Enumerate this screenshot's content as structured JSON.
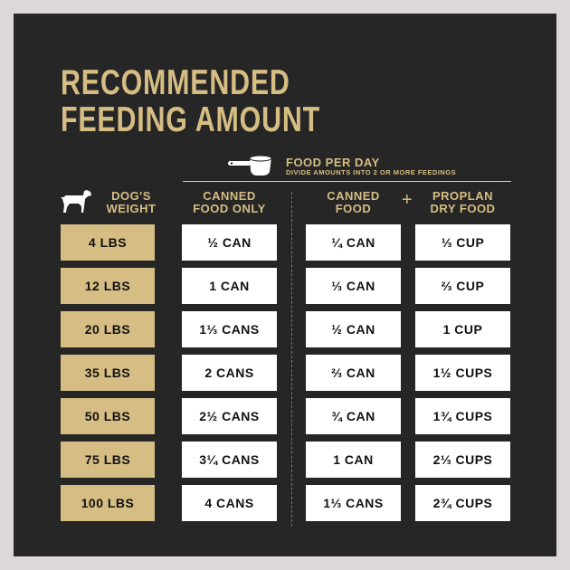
{
  "title": [
    "RECOMMENDED",
    "FEEDING AMOUNT"
  ],
  "food_per_day": {
    "heading": "FOOD PER DAY",
    "subheading": "DIVIDE AMOUNTS INTO 2 OR MORE FEEDINGS",
    "icon": "measuring-cup-icon"
  },
  "headers": {
    "weight": [
      "DOG'S",
      "WEIGHT"
    ],
    "canned_only": [
      "CANNED",
      "FOOD ONLY"
    ],
    "canned": [
      "CANNED",
      "FOOD"
    ],
    "plus": "+",
    "dry": [
      "PROPLAN",
      "DRY FOOD"
    ]
  },
  "colors": {
    "background": "#262626",
    "accent": "#d6bd83"
  },
  "rows": [
    {
      "weight": "4 LBS",
      "canned_only": "½ CAN",
      "canned": "¼ CAN",
      "dry": "⅓ CUP"
    },
    {
      "weight": "12 LBS",
      "canned_only": "1 CAN",
      "canned": "⅓ CAN",
      "dry": "⅔ CUP"
    },
    {
      "weight": "20 LBS",
      "canned_only": "1⅓ CANS",
      "canned": "½ CAN",
      "dry": "1 CUP"
    },
    {
      "weight": "35 LBS",
      "canned_only": "2 CANS",
      "canned": "⅔ CAN",
      "dry": "1½ CUPS"
    },
    {
      "weight": "50 LBS",
      "canned_only": "2½ CANS",
      "canned": "¾ CAN",
      "dry": "1¾ CUPS"
    },
    {
      "weight": "75 LBS",
      "canned_only": "3¼ CANS",
      "canned": "1 CAN",
      "dry": "2⅓ CUPS"
    },
    {
      "weight": "100 LBS",
      "canned_only": "4 CANS",
      "canned": "1⅓ CANS",
      "dry": "2¾ CUPS"
    }
  ]
}
